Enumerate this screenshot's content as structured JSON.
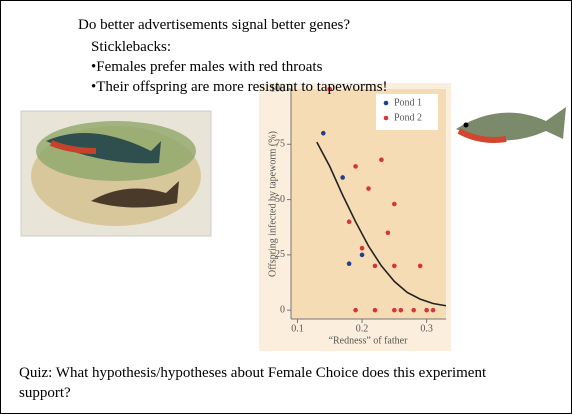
{
  "title": "Do better advertisements signal better genes?",
  "subtitle": "Sticklebacks:",
  "bullets": [
    "•Females prefer males with red throats",
    "•Their offspring are more resistant to tapeworms!"
  ],
  "quiz": "Quiz: What hypothesis/hypotheses about Female Choice does this experiment support?",
  "chart_data": {
    "type": "scatter",
    "x_label": "“Redness” of father",
    "y_label": "Offspring infected by tapeworm (%)",
    "xlim": [
      0.09,
      0.33
    ],
    "xticks": [
      0.1,
      0.2,
      0.3
    ],
    "ylim": [
      -4,
      100
    ],
    "yticks": [
      0,
      25,
      50,
      75,
      100
    ],
    "series": [
      {
        "name": "Pond 1",
        "color": "#1f3f8f",
        "x": [
          0.14,
          0.17,
          0.18,
          0.2
        ],
        "values": [
          80,
          60,
          21,
          25
        ]
      },
      {
        "name": "Pond 2",
        "color": "#d6333a",
        "x": [
          0.15,
          0.18,
          0.19,
          0.2,
          0.21,
          0.22,
          0.23,
          0.24,
          0.25,
          0.25,
          0.26,
          0.28,
          0.29,
          0.31,
          0.25,
          0.3,
          0.22,
          0.19
        ],
        "values": [
          100,
          40,
          65,
          28,
          55,
          20,
          68,
          35,
          48,
          20,
          0,
          0,
          20,
          0,
          0,
          0,
          0,
          0
        ]
      }
    ],
    "curve": {
      "color": "#222222",
      "x": [
        0.13,
        0.15,
        0.17,
        0.19,
        0.21,
        0.23,
        0.25,
        0.27,
        0.29,
        0.31,
        0.33
      ],
      "values": [
        76,
        65,
        52,
        40,
        29,
        20,
        13,
        8,
        5,
        3,
        2
      ]
    }
  }
}
